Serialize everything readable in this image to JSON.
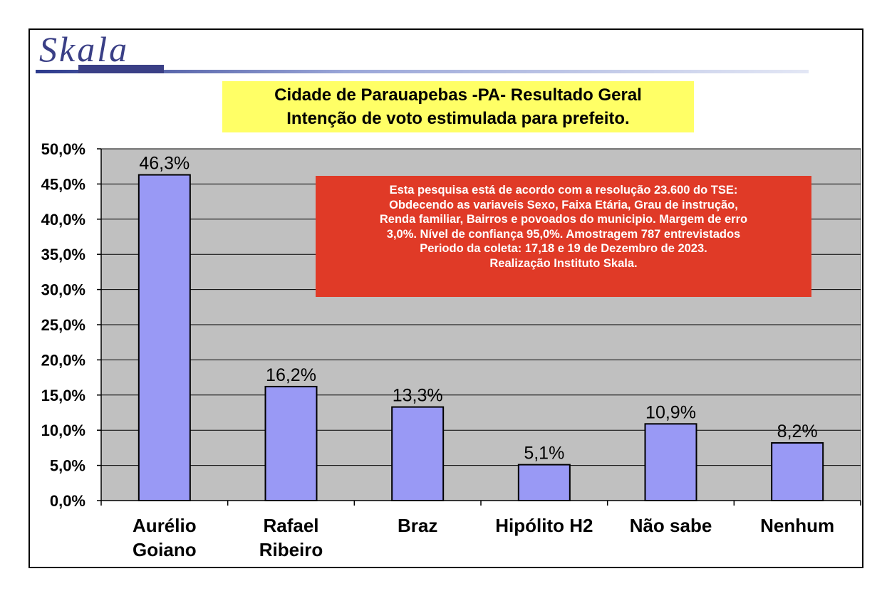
{
  "logo": {
    "text": "Skala"
  },
  "title": {
    "line1": "Cidade de Parauapebas -PA- Resultado Geral",
    "line2": "Intenção de voto estimulada para prefeito."
  },
  "note": {
    "lines": [
      "Esta pesquisa está de acordo com a resolução 23.600 do TSE:",
      "Obdecendo as variaveis Sexo, Faixa Etária, Grau de instrução,",
      "Renda familiar, Bairros e povoados do municipio. Margem de erro",
      "3,0%. Nível de confiança  95,0%. Amostragem 787 entrevistados",
      "Periodo da coleta: 17,18 e 19 de Dezembro de 2023.",
      "Realização Instituto Skala."
    ]
  },
  "colors": {
    "plot_bg": "#c0c0c0",
    "bar": "#9999f5",
    "title_bg": "#ffff66",
    "note_bg": "#e03a27"
  },
  "chart_data": {
    "type": "bar",
    "categories": [
      [
        "Aurélio",
        "Goiano"
      ],
      [
        "Rafael",
        "Ribeiro"
      ],
      [
        "Braz"
      ],
      [
        "Hipólito H2"
      ],
      [
        "Não sabe"
      ],
      [
        "Nenhum"
      ]
    ],
    "values": [
      46.3,
      16.2,
      13.3,
      5.1,
      10.9,
      8.2
    ],
    "data_labels": [
      "46,3%",
      "16,2%",
      "13,3%",
      "5,1%",
      "10,9%",
      "8,2%"
    ],
    "ylim": [
      0,
      50
    ],
    "yticks": [
      0,
      5,
      10,
      15,
      20,
      25,
      30,
      35,
      40,
      45,
      50
    ],
    "ytick_labels": [
      "0,0%",
      "5,0%",
      "10,0%",
      "15,0%",
      "20,0%",
      "25,0%",
      "30,0%",
      "35,0%",
      "40,0%",
      "45,0%",
      "50,0%"
    ],
    "grid": true,
    "title": "Cidade de Parauapebas -PA- Resultado Geral",
    "subtitle": "Intenção de voto estimulada para prefeito."
  }
}
